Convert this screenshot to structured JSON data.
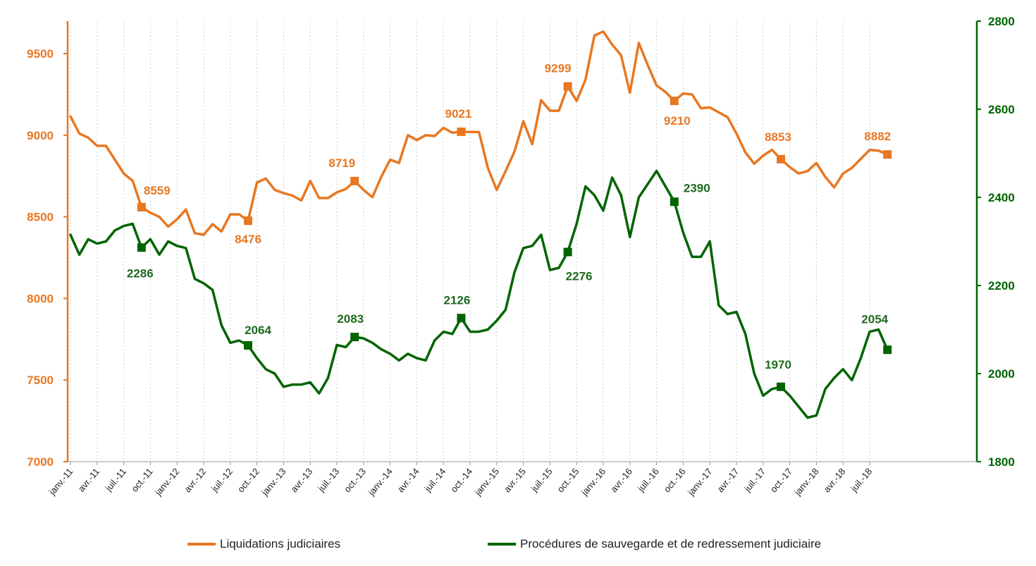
{
  "chart_data": {
    "type": "line",
    "title": "",
    "xlabel": "",
    "x_tick_labels": [
      "janv.-11",
      "avr.-11",
      "juil.-11",
      "oct.-11",
      "janv.-12",
      "avr.-12",
      "juil.-12",
      "oct.-12",
      "janv.-13",
      "avr.-13",
      "juil.-13",
      "oct.-13",
      "janv.-14",
      "avr.-14",
      "juil.-14",
      "oct.-14",
      "janv.-15",
      "avr.-15",
      "juil.-15",
      "oct.-15",
      "janv.-16",
      "avr.-16",
      "juil.-16",
      "oct.-16",
      "janv.-17",
      "avr.-17",
      "juil.-17",
      "oct.-17",
      "janv.-18",
      "avr.-18",
      "juil.-18"
    ],
    "y_left": {
      "ylim": [
        7000,
        9700
      ],
      "ticks": [
        7000,
        7500,
        8000,
        8500,
        9000,
        9500
      ],
      "color": "#E87722"
    },
    "y_right": {
      "ylim": [
        1800,
        2800
      ],
      "ticks": [
        1800,
        2000,
        2200,
        2400,
        2600,
        2800
      ],
      "color": "#006400"
    },
    "grid": {
      "vertical_dotted": true,
      "horizontal": false
    },
    "legend": "bottom",
    "series": [
      {
        "name": "Liquidations judiciaires",
        "axis": "left",
        "color": "#E87722",
        "values": [
          9115,
          9010,
          8985,
          8935,
          8935,
          8850,
          8765,
          8720,
          8559,
          8525,
          8500,
          8440,
          8485,
          8545,
          8400,
          8390,
          8455,
          8410,
          8515,
          8515,
          8476,
          8710,
          8735,
          8665,
          8645,
          8630,
          8600,
          8720,
          8615,
          8615,
          8650,
          8670,
          8719,
          8665,
          8620,
          8745,
          8850,
          8830,
          9000,
          8970,
          9000,
          8995,
          9045,
          9015,
          9021,
          9020,
          9020,
          8800,
          8665,
          8780,
          8900,
          9085,
          8945,
          9215,
          9150,
          9150,
          9299,
          9210,
          9340,
          9610,
          9635,
          9555,
          9490,
          9260,
          9565,
          9430,
          9305,
          9265,
          9210,
          9255,
          9250,
          9165,
          9170,
          9140,
          9110,
          9010,
          8895,
          8825,
          8875,
          8910,
          8853,
          8805,
          8765,
          8780,
          8830,
          8745,
          8680,
          8765,
          8800,
          8855,
          8910,
          8905,
          8882
        ],
        "labels": [
          {
            "index": 8,
            "text": "8559"
          },
          {
            "index": 20,
            "text": "8476"
          },
          {
            "index": 32,
            "text": "8719"
          },
          {
            "index": 44,
            "text": "9021"
          },
          {
            "index": 56,
            "text": "9299"
          },
          {
            "index": 68,
            "text": "9210"
          },
          {
            "index": 80,
            "text": "8853"
          },
          {
            "index": 92,
            "text": "8882"
          }
        ]
      },
      {
        "name": "Procédures de sauvegarde et de redressement judiciaire",
        "axis": "right",
        "color": "#006400",
        "values": [
          2315,
          2270,
          2305,
          2295,
          2300,
          2325,
          2335,
          2340,
          2286,
          2305,
          2270,
          2300,
          2290,
          2285,
          2215,
          2205,
          2190,
          2110,
          2070,
          2075,
          2064,
          2035,
          2010,
          2000,
          1970,
          1975,
          1975,
          1980,
          1955,
          1990,
          2065,
          2060,
          2083,
          2080,
          2070,
          2055,
          2045,
          2030,
          2045,
          2035,
          2030,
          2075,
          2095,
          2090,
          2126,
          2095,
          2095,
          2100,
          2120,
          2145,
          2230,
          2285,
          2290,
          2315,
          2235,
          2240,
          2276,
          2340,
          2425,
          2405,
          2370,
          2445,
          2405,
          2310,
          2400,
          2430,
          2460,
          2425,
          2390,
          2320,
          2265,
          2265,
          2300,
          2155,
          2135,
          2140,
          2090,
          2000,
          1950,
          1965,
          1970,
          1950,
          1925,
          1900,
          1905,
          1965,
          1990,
          2010,
          1985,
          2035,
          2095,
          2100,
          2054
        ],
        "labels": [
          {
            "index": 8,
            "text": "2286"
          },
          {
            "index": 20,
            "text": "2064"
          },
          {
            "index": 32,
            "text": "2083"
          },
          {
            "index": 44,
            "text": "2126"
          },
          {
            "index": 56,
            "text": "2276"
          },
          {
            "index": 68,
            "text": "2390"
          },
          {
            "index": 80,
            "text": "1970"
          },
          {
            "index": 92,
            "text": "2054"
          }
        ]
      }
    ]
  }
}
